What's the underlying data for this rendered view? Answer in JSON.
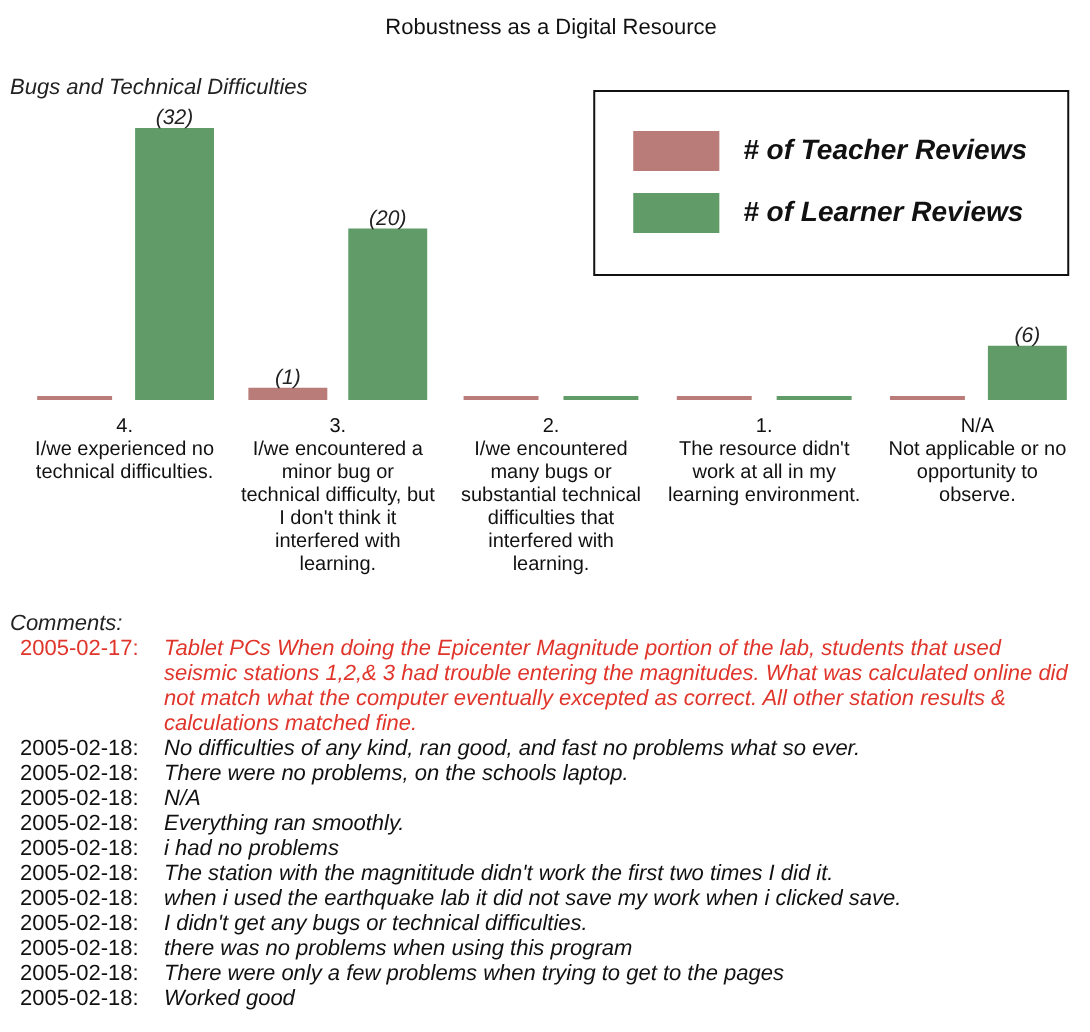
{
  "chart_data": {
    "type": "bar",
    "title": "Robustness as a Digital Resource",
    "subtitle": "Bugs and Technical Difficulties",
    "categories": [
      "4. I/we experienced no technical difficulties.",
      "3. I/we encountered a minor bug or technical difficulty, but I don't think it interfered with learning.",
      "2. I/we encountered many bugs or substantial technical difficulties that interfered with learning.",
      "1. The resource didn't work at all in my learning environment.",
      "N/A Not applicable or no opportunity to observe."
    ],
    "series": [
      {
        "name": "# of Teacher Reviews",
        "color": "#b97c78",
        "values": [
          0,
          1,
          0,
          0,
          0
        ],
        "value_labels": [
          null,
          "(1)",
          null,
          null,
          null
        ]
      },
      {
        "name": "# of Learner Reviews",
        "color": "#619b68",
        "values": [
          32,
          20,
          0,
          0,
          6
        ],
        "value_labels": [
          "(32)",
          "(20)",
          null,
          null,
          "(6)"
        ]
      }
    ],
    "legend": "top right",
    "tick_labels": "x",
    "annotations": [
      "Comments:",
      "2005-02-17:",
      "Tablet PCs When doing the Epicenter Magnitude portion of the lab, students that used seismic stations 1,2,& 3 had trouble entering the magnitudes. What was calculated online did not match what the computer eventually excepted as correct. All other station results & calculations matched fine.",
      "2005-02-18:",
      "No difficulties of any kind, ran good, and fast no problems what so ever.",
      "2005-02-18:",
      "There were no problems, on the schools laptop.",
      "2005-02-18:",
      "N/A",
      "2005-02-18:",
      "Everything ran smoothly.",
      "2005-02-18:",
      "i had no problems",
      "2005-02-18:",
      "The station with the magnititude didn't work the first two times I did it.",
      "2005-02-18:",
      "when i used the earthquake lab it did not save my work when i clicked save.",
      "2005-02-18:",
      "I didn't get any bugs or technical difficulties.",
      "2005-02-18:",
      "there was no problems when using this program",
      "2005-02-18:",
      "There were only a few problems when trying to get to the pages",
      "2005-02-18:",
      "Worked good"
    ]
  }
}
